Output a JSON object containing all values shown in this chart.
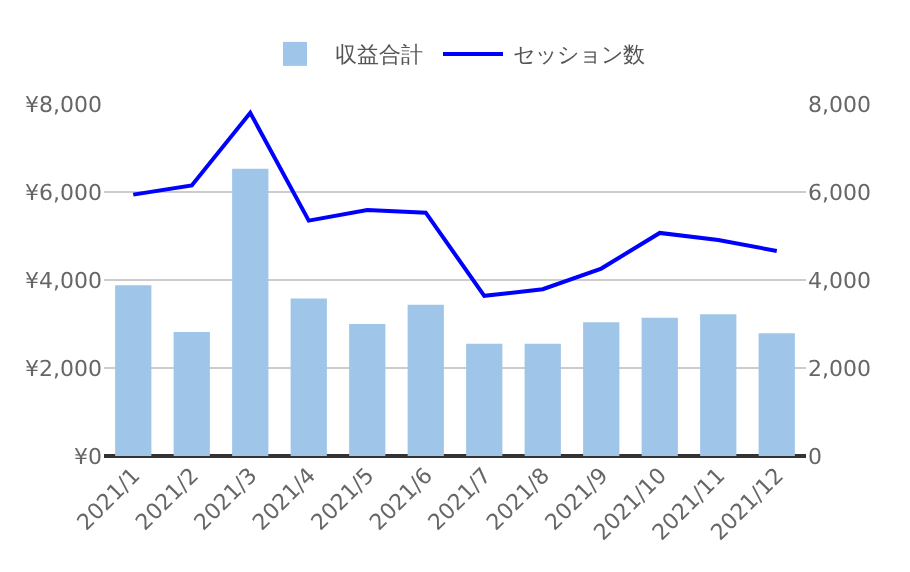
{
  "chart_data": {
    "type": "bar",
    "categories": [
      "2021/1",
      "2021/2",
      "2021/3",
      "2021/4",
      "2021/5",
      "2021/6",
      "2021/7",
      "2021/8",
      "2021/9",
      "2021/10",
      "2021/11",
      "2021/12"
    ],
    "series": [
      {
        "name": "収益合計",
        "color": "#9fc5e8",
        "values": [
          3880,
          2820,
          6530,
          3580,
          3000,
          3440,
          2550,
          2550,
          3040,
          3140,
          3220,
          2790
        ]
      },
      {
        "name": "セッション数",
        "type": "line",
        "axis": "y2",
        "color": "#0000ff",
        "values": [
          5940,
          6150,
          7800,
          5350,
          5590,
          5530,
          3640,
          3790,
          4260,
          5070,
          4910,
          4660
        ]
      }
    ],
    "ylim": [
      0,
      8000
    ],
    "yticks": [
      {
        "value": 0,
        "label": "¥0"
      },
      {
        "value": 2000,
        "label": "¥2,000"
      },
      {
        "value": 4000,
        "label": "¥4,000"
      },
      {
        "value": 6000,
        "label": "¥6,000"
      },
      {
        "value": 8000,
        "label": "¥8,000"
      }
    ],
    "y2lim": [
      0,
      8000
    ],
    "y2ticks": [
      {
        "value": 0,
        "label": "0"
      },
      {
        "value": 2000,
        "label": "2,000"
      },
      {
        "value": 4000,
        "label": "4,000"
      },
      {
        "value": 6000,
        "label": "6,000"
      },
      {
        "value": 8000,
        "label": "8,000"
      }
    ],
    "grid": "y",
    "legend": "top",
    "marker": "none",
    "line_style": "solid"
  }
}
